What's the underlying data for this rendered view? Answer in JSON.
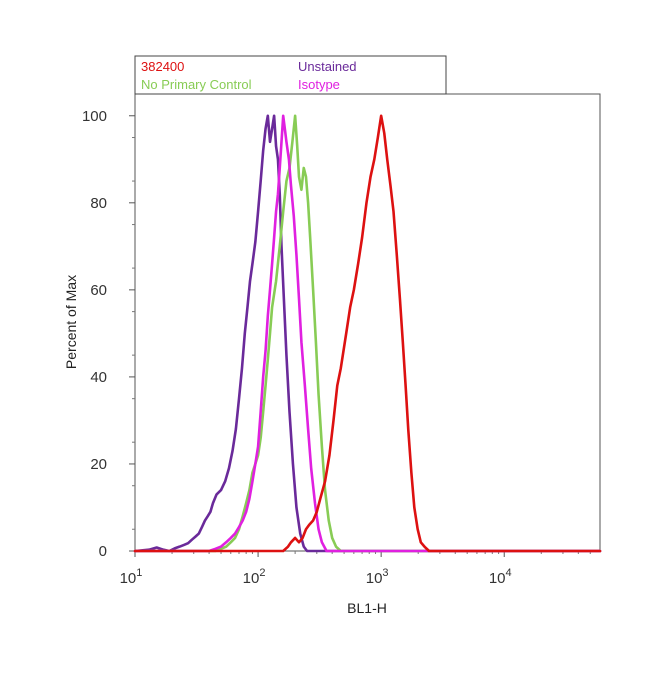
{
  "chart_data": {
    "type": "line",
    "xlabel": "BL1-H",
    "ylabel": "Percent of Max",
    "x_scale": "log",
    "xlim": [
      10,
      60000
    ],
    "ylim": [
      0,
      105
    ],
    "x_ticks": [
      {
        "value": 10,
        "base": "10",
        "exp": "1"
      },
      {
        "value": 100,
        "base": "10",
        "exp": "2"
      },
      {
        "value": 1000,
        "base": "10",
        "exp": "3"
      },
      {
        "value": 10000,
        "base": "10",
        "exp": "4"
      }
    ],
    "y_ticks": [
      {
        "value": 0,
        "label": "0"
      },
      {
        "value": 20,
        "label": "20"
      },
      {
        "value": 40,
        "label": "40"
      },
      {
        "value": 60,
        "label": "60"
      },
      {
        "value": 80,
        "label": "80"
      },
      {
        "value": 100,
        "label": "100"
      }
    ],
    "legend_position": "top",
    "series": [
      {
        "name": "382400",
        "color": "#dd1111",
        "points": [
          [
            10,
            0
          ],
          [
            160,
            0
          ],
          [
            175,
            1
          ],
          [
            185,
            2
          ],
          [
            200,
            3
          ],
          [
            215,
            2
          ],
          [
            230,
            3
          ],
          [
            245,
            5
          ],
          [
            260,
            6
          ],
          [
            280,
            7
          ],
          [
            300,
            9
          ],
          [
            320,
            12
          ],
          [
            350,
            16
          ],
          [
            380,
            22
          ],
          [
            410,
            30
          ],
          [
            440,
            38
          ],
          [
            470,
            42
          ],
          [
            520,
            50
          ],
          [
            560,
            56
          ],
          [
            600,
            60
          ],
          [
            650,
            66
          ],
          [
            700,
            72
          ],
          [
            760,
            80
          ],
          [
            820,
            86
          ],
          [
            880,
            90
          ],
          [
            940,
            95
          ],
          [
            1000,
            100
          ],
          [
            1060,
            96
          ],
          [
            1120,
            90
          ],
          [
            1190,
            84
          ],
          [
            1260,
            78
          ],
          [
            1340,
            68
          ],
          [
            1420,
            58
          ],
          [
            1500,
            48
          ],
          [
            1580,
            38
          ],
          [
            1660,
            28
          ],
          [
            1760,
            18
          ],
          [
            1860,
            10
          ],
          [
            1980,
            5
          ],
          [
            2100,
            2
          ],
          [
            2250,
            1
          ],
          [
            2450,
            0
          ],
          [
            60000,
            0
          ]
        ]
      },
      {
        "name": "Unstained",
        "color": "#6a2a9a",
        "points": [
          [
            10,
            0
          ],
          [
            13,
            0.3
          ],
          [
            15,
            0.8
          ],
          [
            17,
            0.3
          ],
          [
            19,
            0
          ],
          [
            21,
            0.6
          ],
          [
            23,
            1
          ],
          [
            25,
            1.4
          ],
          [
            27,
            1.8
          ],
          [
            29,
            2.6
          ],
          [
            31,
            3.3
          ],
          [
            33,
            4
          ],
          [
            35,
            5.5
          ],
          [
            37,
            7
          ],
          [
            39,
            8
          ],
          [
            41,
            9
          ],
          [
            43,
            11
          ],
          [
            46,
            13
          ],
          [
            50,
            14
          ],
          [
            54,
            16
          ],
          [
            58,
            19
          ],
          [
            62,
            23
          ],
          [
            66,
            28
          ],
          [
            70,
            35
          ],
          [
            74,
            42
          ],
          [
            78,
            50
          ],
          [
            82,
            56
          ],
          [
            86,
            62
          ],
          [
            90,
            66
          ],
          [
            95,
            71
          ],
          [
            100,
            78
          ],
          [
            105,
            85
          ],
          [
            110,
            92
          ],
          [
            115,
            97
          ],
          [
            120,
            100
          ],
          [
            125,
            94
          ],
          [
            130,
            97
          ],
          [
            135,
            100
          ],
          [
            140,
            93
          ],
          [
            145,
            90
          ],
          [
            150,
            82
          ],
          [
            155,
            70
          ],
          [
            162,
            58
          ],
          [
            170,
            45
          ],
          [
            180,
            32
          ],
          [
            192,
            20
          ],
          [
            205,
            10
          ],
          [
            220,
            4
          ],
          [
            235,
            1
          ],
          [
            250,
            0
          ],
          [
            60000,
            0
          ]
        ]
      },
      {
        "name": "No Primary Control",
        "color": "#88cc55",
        "points": [
          [
            10,
            0
          ],
          [
            45,
            0
          ],
          [
            50,
            0.5
          ],
          [
            55,
            1
          ],
          [
            60,
            2
          ],
          [
            65,
            3
          ],
          [
            70,
            5
          ],
          [
            75,
            8
          ],
          [
            80,
            11
          ],
          [
            85,
            14
          ],
          [
            90,
            18
          ],
          [
            95,
            20
          ],
          [
            100,
            22
          ],
          [
            105,
            26
          ],
          [
            110,
            32
          ],
          [
            115,
            38
          ],
          [
            120,
            44
          ],
          [
            125,
            50
          ],
          [
            130,
            56
          ],
          [
            140,
            62
          ],
          [
            150,
            70
          ],
          [
            160,
            78
          ],
          [
            170,
            85
          ],
          [
            180,
            88
          ],
          [
            190,
            94
          ],
          [
            200,
            100
          ],
          [
            208,
            93
          ],
          [
            215,
            86
          ],
          [
            225,
            83
          ],
          [
            235,
            88
          ],
          [
            245,
            86
          ],
          [
            255,
            80
          ],
          [
            265,
            72
          ],
          [
            280,
            60
          ],
          [
            295,
            48
          ],
          [
            310,
            36
          ],
          [
            330,
            24
          ],
          [
            350,
            14
          ],
          [
            375,
            7
          ],
          [
            400,
            3
          ],
          [
            430,
            1
          ],
          [
            470,
            0
          ],
          [
            60000,
            0
          ]
        ]
      },
      {
        "name": "Isotype",
        "color": "#e020e0",
        "points": [
          [
            10,
            0
          ],
          [
            40,
            0
          ],
          [
            45,
            0.5
          ],
          [
            50,
            1
          ],
          [
            55,
            2
          ],
          [
            60,
            3
          ],
          [
            65,
            4
          ],
          [
            70,
            5.5
          ],
          [
            75,
            7
          ],
          [
            80,
            9
          ],
          [
            85,
            12
          ],
          [
            90,
            16
          ],
          [
            95,
            20
          ],
          [
            100,
            24
          ],
          [
            105,
            32
          ],
          [
            110,
            40
          ],
          [
            115,
            46
          ],
          [
            120,
            54
          ],
          [
            125,
            60
          ],
          [
            130,
            66
          ],
          [
            135,
            72
          ],
          [
            140,
            78
          ],
          [
            145,
            82
          ],
          [
            150,
            88
          ],
          [
            155,
            94
          ],
          [
            160,
            100
          ],
          [
            165,
            97
          ],
          [
            170,
            94
          ],
          [
            178,
            90
          ],
          [
            185,
            84
          ],
          [
            195,
            77
          ],
          [
            205,
            68
          ],
          [
            215,
            58
          ],
          [
            225,
            48
          ],
          [
            240,
            38
          ],
          [
            255,
            28
          ],
          [
            270,
            19
          ],
          [
            290,
            11
          ],
          [
            310,
            5
          ],
          [
            330,
            2
          ],
          [
            360,
            0
          ],
          [
            60000,
            0
          ]
        ]
      }
    ]
  }
}
